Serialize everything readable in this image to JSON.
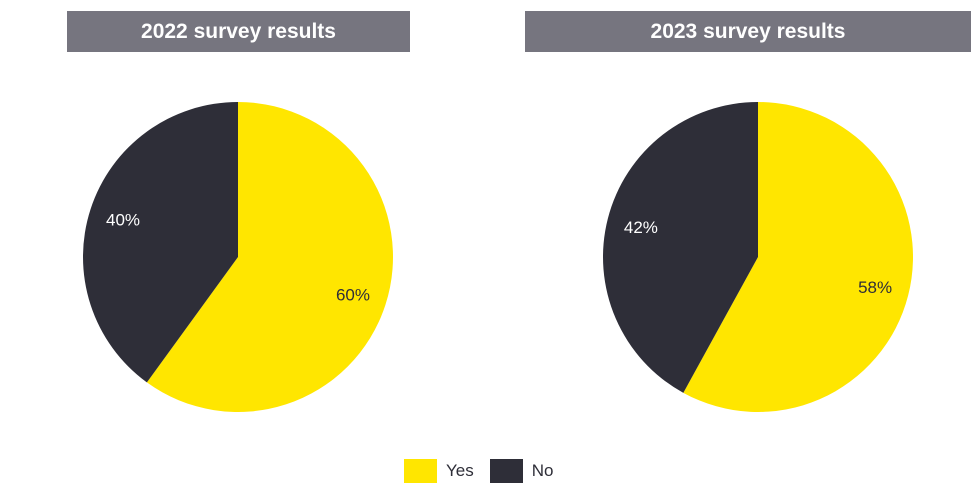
{
  "colors": {
    "yes": "#ffe600",
    "no": "#2e2e38",
    "header_bg": "#76757f",
    "label_on_yes": "#2e2e38",
    "label_on_no": "#ffffff"
  },
  "chart_data": [
    {
      "type": "pie",
      "title": "2022 survey results",
      "categories": [
        "Yes",
        "No"
      ],
      "values": [
        60,
        40
      ],
      "labels": [
        "60%",
        "40%"
      ],
      "legend": "bottom-center"
    },
    {
      "type": "pie",
      "title": "2023 survey results",
      "categories": [
        "Yes",
        "No"
      ],
      "values": [
        58,
        42
      ],
      "labels": [
        "58%",
        "42%"
      ],
      "legend": "bottom-center"
    }
  ],
  "legend": {
    "items": [
      {
        "label": "Yes",
        "color": "#ffe600"
      },
      {
        "label": "No",
        "color": "#2e2e38"
      }
    ]
  }
}
